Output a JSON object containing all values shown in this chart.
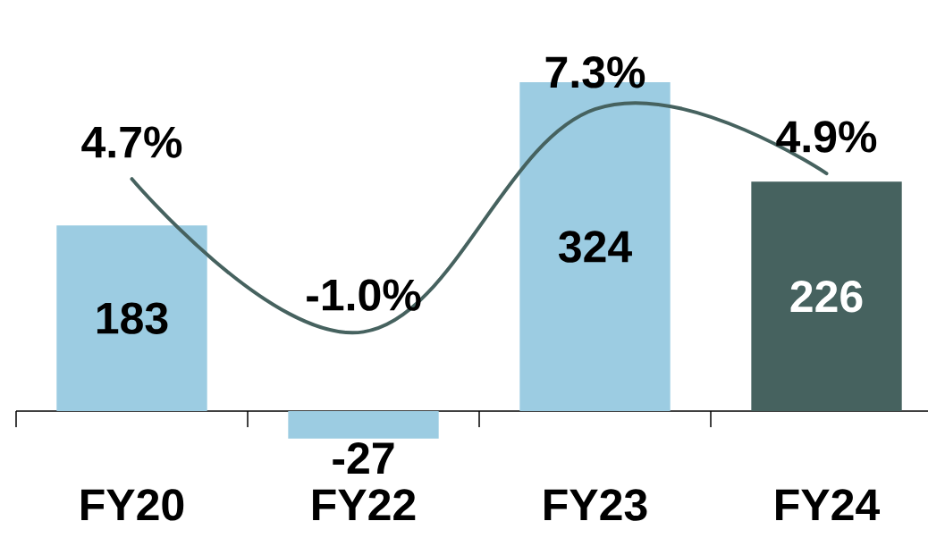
{
  "chart_data": {
    "type": "bar",
    "categories": [
      "FY20",
      "FY22",
      "FY23",
      "FY24"
    ],
    "data_labels": true,
    "series": [
      {
        "values": [
          183,
          -27,
          324,
          226
        ],
        "colors": [
          "#9ccce2",
          "#9ccce2",
          "#9ccce2",
          "#46625f"
        ]
      },
      {
        "type": "line",
        "axis": "y2",
        "color": "#46625f",
        "values": [
          4.7,
          -1.0,
          7.3,
          4.9
        ],
        "value_labels": [
          "4.7%",
          "-1.0%",
          "7.3%",
          "4.9%"
        ]
      }
    ]
  }
}
